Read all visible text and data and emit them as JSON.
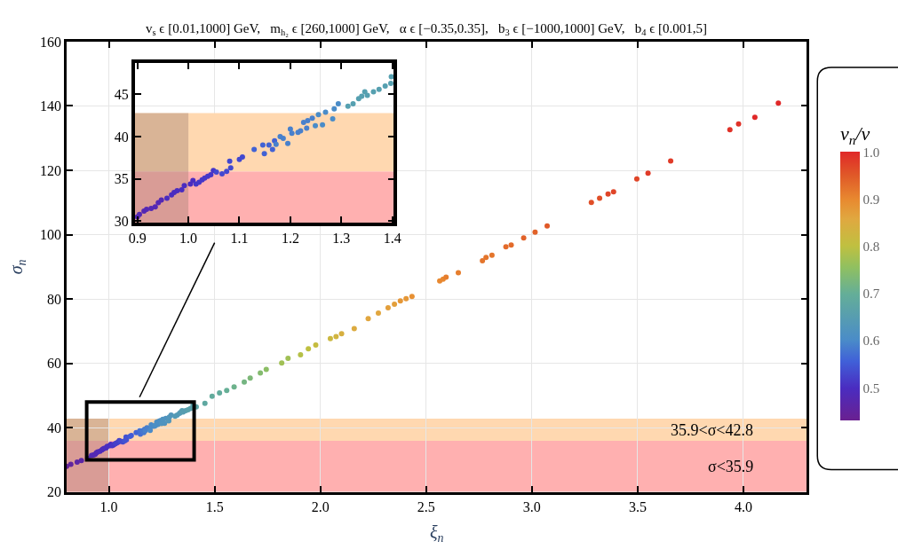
{
  "chart_data": [
    {
      "type": "scatter",
      "title": "v$_{s}$ ϵ [0.01,1000] GeV,   m$_{h₂}$ ϵ [260,1000] GeV,   α ϵ [−0.35,0.35],   b$_{3}$ ϵ [−1000,1000] GeV,   b$_{4}$ ϵ [0.001,5]",
      "xlabel": "ξ$_{n}$",
      "ylabel": "σ$_{n}$",
      "clabel": "v$_{n}$/v",
      "xlim": [
        0.8,
        4.3
      ],
      "ylim": [
        20,
        160
      ],
      "xticks": [
        {
          "value": 1,
          "label": "1.0"
        },
        1.5,
        {
          "value": 2,
          "label": "2.0"
        },
        2.5,
        {
          "value": 3,
          "label": "3.0"
        },
        3.5,
        {
          "value": 4,
          "label": "4.0"
        }
      ],
      "yticks": [
        20,
        40,
        60,
        80,
        100,
        120,
        140,
        160
      ],
      "clim": [
        0.43,
        1.0
      ],
      "cticks": [
        0.5,
        0.6,
        0.7,
        0.8,
        0.9,
        {
          "value": 1,
          "label": "1.0"
        }
      ],
      "grid": true,
      "marker": "circle",
      "bands": [
        {
          "axis": "y",
          "from": 20,
          "to": 35.9,
          "label": "σ<35.9",
          "color": "#ffb0b0"
        },
        {
          "axis": "y",
          "from": 35.9,
          "to": 42.8,
          "label": "35.9<σ<42.8",
          "color": "#ffd8b0"
        },
        {
          "axis": "x",
          "from": 0.8,
          "to": 1.0,
          "color": "#a08070"
        }
      ],
      "x": [
        0.8,
        0.82,
        0.85,
        0.87,
        0.9,
        0.918,
        0.927,
        0.935,
        0.941,
        0.947,
        0.958,
        0.967,
        0.972,
        0.978,
        0.987,
        0.992,
        1.004,
        1.009,
        1.015,
        1.021,
        1.027,
        1.032,
        1.038,
        1.044,
        1.049,
        1.055,
        1.066,
        1.075,
        1.081,
        1.083,
        1.1,
        1.106,
        1.129,
        1.146,
        1.149,
        1.158,
        1.165,
        1.169,
        1.172,
        1.18,
        1.186,
        1.195,
        1.2,
        1.203,
        1.215,
        1.22,
        1.226,
        1.232,
        1.234,
        1.243,
        1.249,
        1.255,
        1.263,
        1.269,
        1.283,
        1.286,
        1.294,
        1.313,
        1.323,
        1.334,
        1.34,
        1.346,
        1.351,
        1.363,
        1.374,
        1.386,
        1.397,
        1.398,
        1.413,
        1.454,
        1.488,
        1.523,
        1.557,
        1.592,
        1.64,
        1.668,
        1.716,
        1.744,
        1.817,
        1.847,
        1.906,
        1.943,
        1.978,
        2.047,
        2.074,
        2.1,
        2.16,
        2.226,
        2.274,
        2.32,
        2.35,
        2.378,
        2.405,
        2.433,
        2.564,
        2.58,
        2.594,
        2.652,
        2.766,
        2.783,
        2.811,
        2.877,
        2.902,
        2.961,
        3.015,
        3.072,
        3.281,
        3.32,
        3.36,
        3.386,
        3.496,
        3.549,
        3.656,
        3.936,
        3.977,
        4.054,
        4.165
      ],
      "values": [
        28.0,
        28.6,
        29.3,
        29.8,
        30.5,
        31.4,
        31.5,
        31.7,
        32.2,
        32.5,
        32.7,
        33.1,
        33.4,
        33.6,
        33.7,
        34.2,
        34.4,
        34.8,
        34.4,
        34.6,
        34.9,
        35.1,
        35.3,
        35.5,
        36.0,
        35.8,
        35.6,
        35.9,
        37.1,
        36.3,
        37.3,
        37.6,
        38.5,
        39.0,
        38.0,
        39.0,
        38.5,
        39.5,
        39.1,
        40.0,
        39.8,
        39.2,
        40.9,
        40.4,
        40.5,
        40.7,
        41.7,
        41.0,
        41.9,
        42.2,
        41.3,
        42.6,
        41.4,
        42.9,
        42.1,
        43.3,
        43.9,
        43.6,
        43.9,
        44.5,
        44.8,
        45.3,
        44.9,
        45.3,
        45.6,
        46.0,
        46.3,
        47.1,
        46.5,
        47.6,
        49.8,
        50.8,
        51.6,
        52.7,
        54.2,
        55.4,
        57.0,
        58.1,
        60.1,
        61.6,
        62.7,
        64.5,
        65.7,
        67.7,
        68.3,
        69.2,
        70.8,
        73.9,
        75.6,
        77.3,
        78.4,
        79.4,
        80.1,
        80.8,
        85.6,
        86.2,
        86.8,
        88.2,
        91.9,
        92.9,
        93.6,
        96.2,
        96.8,
        99.0,
        100.8,
        102.7,
        110.0,
        111.3,
        112.6,
        113.3,
        117.3,
        119.1,
        122.9,
        132.6,
        134.4,
        136.5,
        140.9
      ],
      "cvalues": [
        0.44,
        0.45,
        0.46,
        0.46,
        0.47,
        0.48,
        0.48,
        0.48,
        0.48,
        0.48,
        0.49,
        0.49,
        0.49,
        0.49,
        0.5,
        0.5,
        0.5,
        0.5,
        0.51,
        0.51,
        0.51,
        0.52,
        0.52,
        0.52,
        0.52,
        0.53,
        0.53,
        0.54,
        0.54,
        0.54,
        0.55,
        0.55,
        0.56,
        0.57,
        0.57,
        0.58,
        0.58,
        0.58,
        0.59,
        0.59,
        0.59,
        0.6,
        0.6,
        0.6,
        0.6,
        0.61,
        0.61,
        0.61,
        0.61,
        0.61,
        0.62,
        0.62,
        0.62,
        0.62,
        0.63,
        0.63,
        0.63,
        0.64,
        0.64,
        0.64,
        0.64,
        0.65,
        0.65,
        0.65,
        0.66,
        0.66,
        0.66,
        0.66,
        0.67,
        0.68,
        0.69,
        0.69,
        0.7,
        0.71,
        0.72,
        0.73,
        0.74,
        0.75,
        0.77,
        0.77,
        0.79,
        0.8,
        0.81,
        0.82,
        0.83,
        0.84,
        0.85,
        0.86,
        0.86,
        0.87,
        0.87,
        0.88,
        0.88,
        0.89,
        0.9,
        0.9,
        0.91,
        0.91,
        0.92,
        0.92,
        0.92,
        0.93,
        0.93,
        0.94,
        0.94,
        0.95,
        0.96,
        0.96,
        0.97,
        0.97,
        0.97,
        0.98,
        0.98,
        0.99,
        0.99,
        1.0,
        1.0
      ]
    },
    {
      "type": "scatter",
      "xlim": [
        0.895,
        1.403
      ],
      "ylim": [
        29.8,
        48.7
      ],
      "xticks": [
        0.9,
        {
          "value": 1,
          "label": "1.0"
        },
        1.1,
        1.2,
        1.3,
        1.4
      ],
      "yticks": [
        30,
        35,
        40,
        45
      ],
      "marker": "circle",
      "bands": [
        {
          "axis": "y",
          "from": 29.8,
          "to": 35.9,
          "color": "#ffb0b0"
        },
        {
          "axis": "y",
          "from": 35.9,
          "to": 42.8,
          "color": "#ffd8b0"
        },
        {
          "axis": "x",
          "from": 0.895,
          "to": 1.0,
          "color": "#a08070"
        }
      ],
      "x": [
        0.9,
        0.904,
        0.913,
        0.918,
        0.927,
        0.935,
        0.941,
        0.947,
        0.958,
        0.967,
        0.972,
        0.978,
        0.987,
        0.992,
        1.004,
        1.009,
        1.015,
        1.021,
        1.027,
        1.032,
        1.038,
        1.044,
        1.049,
        1.055,
        1.066,
        1.075,
        1.081,
        1.083,
        1.1,
        1.106,
        1.129,
        1.146,
        1.149,
        1.158,
        1.165,
        1.169,
        1.172,
        1.18,
        1.186,
        1.195,
        1.2,
        1.203,
        1.215,
        1.22,
        1.226,
        1.232,
        1.234,
        1.243,
        1.249,
        1.255,
        1.263,
        1.269,
        1.283,
        1.286,
        1.294,
        1.313,
        1.323,
        1.334,
        1.34,
        1.346,
        1.351,
        1.363,
        1.374,
        1.386,
        1.397,
        1.398
      ],
      "values": [
        30.5,
        30.8,
        31.2,
        31.4,
        31.5,
        31.7,
        32.2,
        32.5,
        32.7,
        33.1,
        33.4,
        33.6,
        33.7,
        34.2,
        34.4,
        34.8,
        34.4,
        34.6,
        34.9,
        35.1,
        35.3,
        35.5,
        36.0,
        35.8,
        35.6,
        35.9,
        37.1,
        36.3,
        37.3,
        37.6,
        38.5,
        39.0,
        38.0,
        39.0,
        38.5,
        39.5,
        39.1,
        40.0,
        39.8,
        39.2,
        40.9,
        40.4,
        40.5,
        40.7,
        41.7,
        41.0,
        41.9,
        42.2,
        41.3,
        42.6,
        41.4,
        42.9,
        42.1,
        43.3,
        43.9,
        43.6,
        43.9,
        44.5,
        44.8,
        45.3,
        44.9,
        45.3,
        45.6,
        46.0,
        46.3,
        47.1
      ],
      "colors": [
        "#5428b4",
        "#5428b4",
        "#5428b4",
        "#5428b4",
        "#5428b4",
        "#5428b4",
        "#5428b4",
        "#5428b4",
        "#4a2cc0",
        "#4a2cc0",
        "#4a2cc0",
        "#4a2cc0",
        "#4a2cc0",
        "#4a2cc0",
        "#4a2cc0",
        "#4a2cc0",
        "#4536c8",
        "#4536c8",
        "#4536c8",
        "#4536c8",
        "#4536c8",
        "#4536c8",
        "#4536c8",
        "#4248d0",
        "#4248d0",
        "#4248d0",
        "#4248d0",
        "#4248d0",
        "#4248d0",
        "#4248d0",
        "#4262d4",
        "#4262d4",
        "#4262d4",
        "#4262d4",
        "#4262d4",
        "#4262d4",
        "#4880cc",
        "#4880cc",
        "#4880cc",
        "#4880cc",
        "#4880cc",
        "#4880cc",
        "#4880cc",
        "#4880cc",
        "#4880cc",
        "#4880cc",
        "#4880cc",
        "#4880cc",
        "#4a8cc8",
        "#4a8cc8",
        "#4a8cc8",
        "#4a8cc8",
        "#4a8cc8",
        "#4a8cc8",
        "#4a8cc8",
        "#56a0b0",
        "#56a0b0",
        "#56a0b0",
        "#56a0b0",
        "#56a0b0",
        "#56a0b0",
        "#56a0b0",
        "#56a0b0",
        "#56a0b0",
        "#56a0b0",
        "#56a0b0"
      ]
    }
  ]
}
